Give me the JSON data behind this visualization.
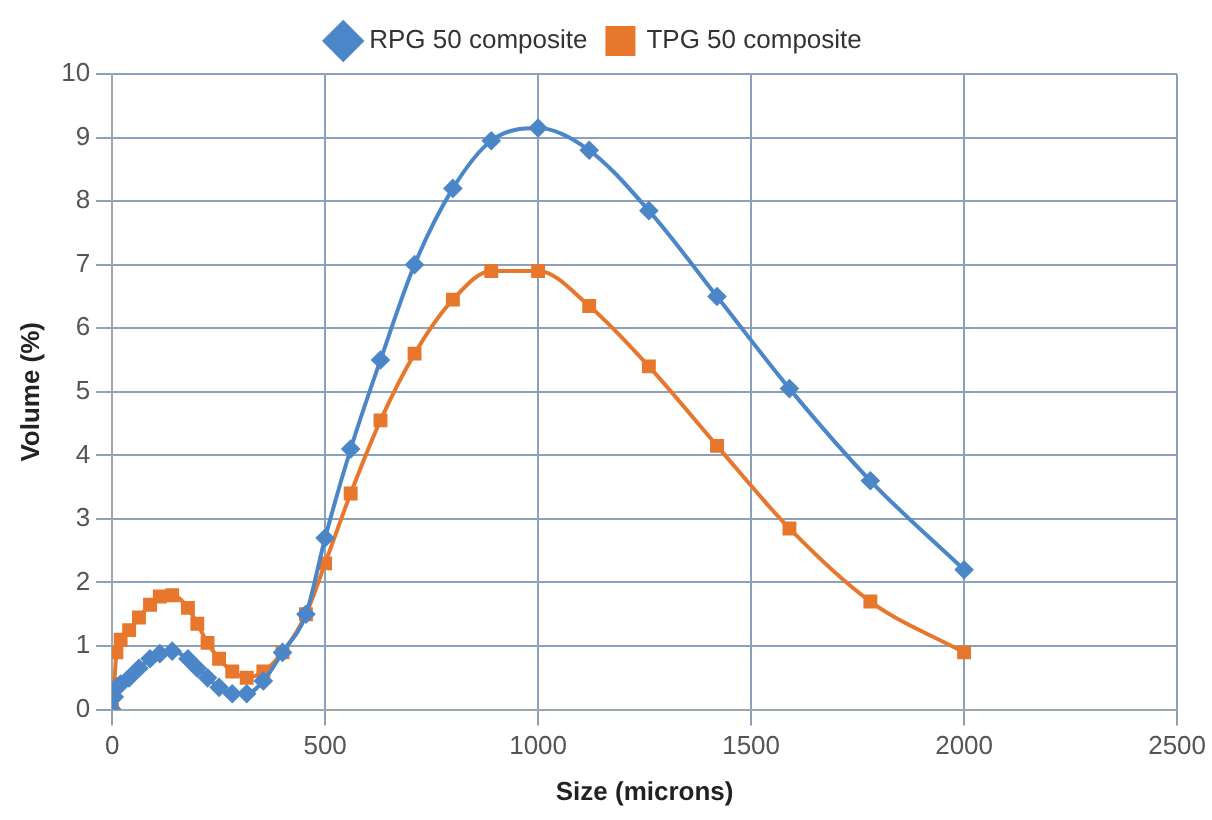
{
  "chart_data": {
    "type": "line",
    "xlabel": "Size (microns)",
    "ylabel": "Volume (%)",
    "xlim": [
      0,
      2500
    ],
    "xticks": [
      0,
      500,
      1000,
      1500,
      2000,
      2500
    ],
    "ylim": [
      0,
      10
    ],
    "yticks": [
      0,
      1,
      2,
      3,
      4,
      5,
      6,
      7,
      8,
      9,
      10
    ],
    "grid": true,
    "legend": "top",
    "series": [
      {
        "name": "RPG 50 composite",
        "color": "#4a86c8",
        "marker": "diamond",
        "x": [
          0,
          5,
          10,
          20,
          40,
          63,
          89,
          112,
          141,
          178,
          200,
          224,
          251,
          282,
          316,
          355,
          400,
          455,
          500,
          560,
          630,
          710,
          800,
          890,
          1000,
          1120,
          1260,
          1420,
          1590,
          1780,
          2000
        ],
        "values": [
          0,
          0.2,
          0.35,
          0.4,
          0.5,
          0.65,
          0.8,
          0.88,
          0.92,
          0.8,
          0.65,
          0.5,
          0.35,
          0.25,
          0.25,
          0.45,
          0.9,
          1.5,
          2.7,
          4.1,
          5.5,
          7.0,
          8.2,
          8.95,
          9.15,
          8.8,
          7.85,
          6.5,
          5.05,
          3.6,
          2.2
        ]
      },
      {
        "name": "TPG 50 composite",
        "color": "#e8772e",
        "marker": "square",
        "x": [
          0,
          5,
          10,
          20,
          40,
          63,
          89,
          112,
          141,
          178,
          200,
          224,
          251,
          282,
          316,
          355,
          400,
          455,
          500,
          560,
          630,
          710,
          800,
          890,
          1000,
          1120,
          1260,
          1420,
          1590,
          1780,
          2000
        ],
        "values": [
          0,
          0.4,
          0.9,
          1.1,
          1.25,
          1.45,
          1.65,
          1.78,
          1.8,
          1.6,
          1.35,
          1.05,
          0.8,
          0.6,
          0.5,
          0.6,
          0.9,
          1.5,
          2.3,
          3.4,
          4.55,
          5.6,
          6.45,
          6.9,
          6.9,
          6.35,
          5.4,
          4.15,
          2.85,
          1.7,
          0.9
        ]
      }
    ]
  }
}
